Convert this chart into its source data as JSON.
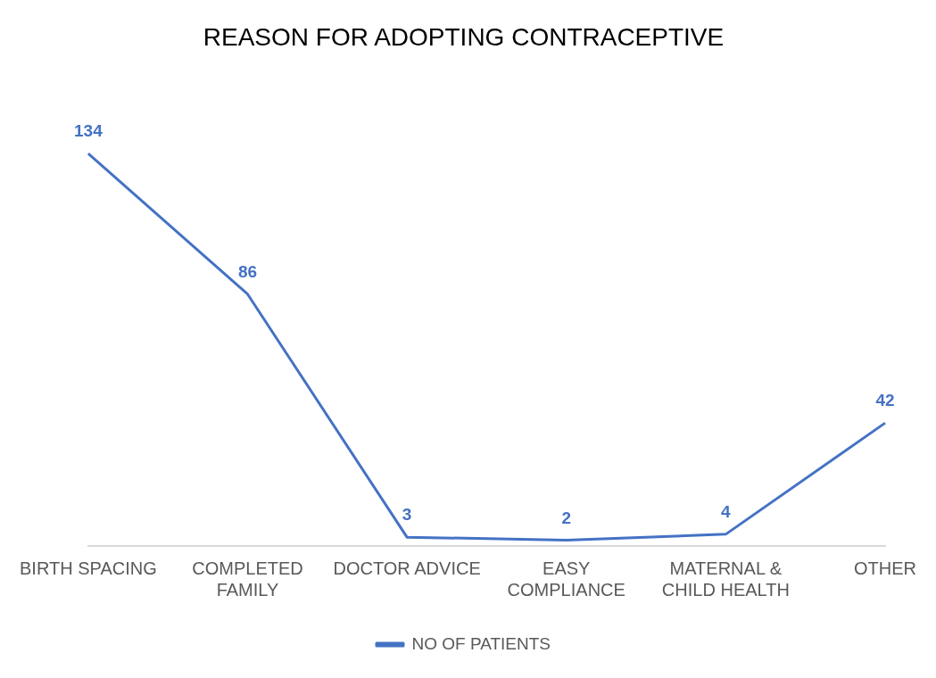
{
  "chart_data": {
    "type": "line",
    "title": "REASON FOR ADOPTING CONTRACEPTIVE",
    "categories": [
      "BIRTH SPACING",
      "COMPLETED FAMILY",
      "DOCTOR ADVICE",
      "EASY COMPLIANCE",
      "MATERNAL & CHILD HEALTH",
      "OTHER"
    ],
    "series": [
      {
        "name": "NO OF PATIENTS",
        "color": "#4472c4",
        "values": [
          134,
          86,
          3,
          2,
          4,
          42
        ]
      }
    ],
    "data_labels": true,
    "legend": "bottom",
    "grid": false,
    "marker": "none",
    "line_style": "solid"
  }
}
